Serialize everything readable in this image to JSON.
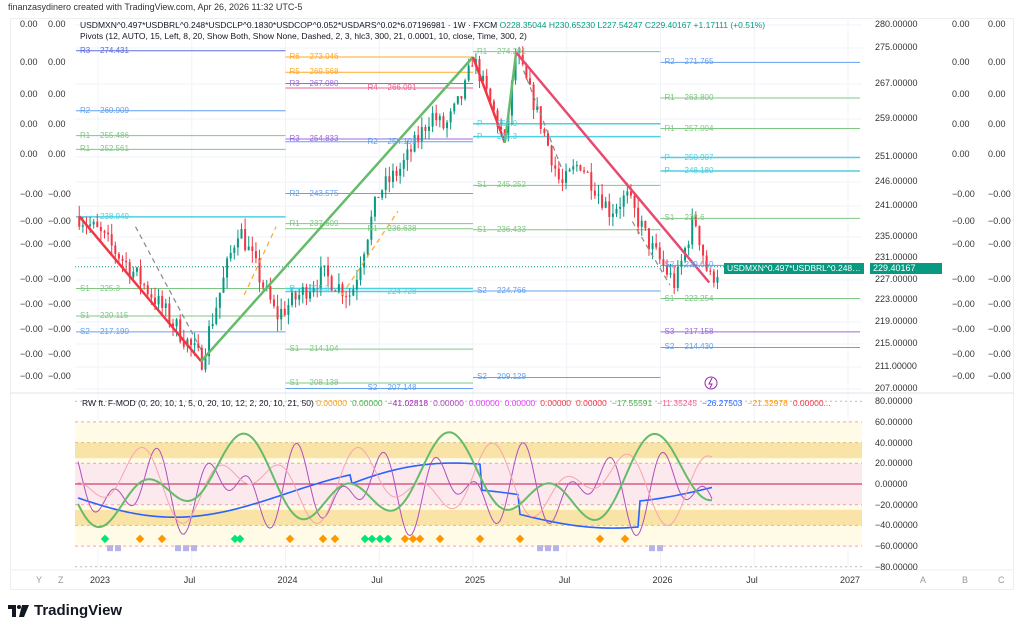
{
  "credit": "finanzasydinero created with TradingView.com, Apr 26, 2026 11:32 UTC-5",
  "symbol": {
    "name": "USDMXN^0.497*USDBRL^0.248*USDCLP^0.1830*USDCOP^0.052*USDARS^0.02*6.07196981 · 1W · FXCM",
    "open_label": "O",
    "open": "228.35044",
    "high_label": "H",
    "high": "230.65230",
    "low_label": "L",
    "low": "227.54247",
    "close_label": "C",
    "close": "229.40167",
    "change": "+1.17111 (+0.51%)",
    "short_name": "USDMXN^0.497*USDBRL^0.248*USDCLP^0.18...",
    "last_price": "229.40167"
  },
  "pivots_legend": "Pivots (12, AUTO, 15, Left, 8, 20, Show Both, Show None, Dashed, 2, 3, hlc3, 300, 21, 0.0001, 10, close, Time, 300, 2)",
  "oscillator_legend": {
    "title": "RW ft. F-MOD (0, 20, 10, 1, 5, 0, 20, 10, 12, 2, 20, 10, 21, 50)",
    "values": [
      {
        "v": "0.00000",
        "c": "#f7a21b"
      },
      {
        "v": "0.00000",
        "c": "#4caf50"
      },
      {
        "v": "−41.02818",
        "c": "#9c27b0"
      },
      {
        "v": "0.00000",
        "c": "#ab47bc"
      },
      {
        "v": "0.00000",
        "c": "#e040fb"
      },
      {
        "v": "0.00000",
        "c": "#e040fb"
      },
      {
        "v": "0.00000",
        "c": "#f23645"
      },
      {
        "v": "0.00000",
        "c": "#f23645"
      },
      {
        "v": "−17.55591",
        "c": "#4caf50"
      },
      {
        "v": "−11.35245",
        "c": "#f06292"
      },
      {
        "v": "−26.27503",
        "c": "#2962ff"
      },
      {
        "v": "−21.32978",
        "c": "#ff9800"
      },
      {
        "v": "0.00000...",
        "c": "#f23645"
      }
    ]
  },
  "price_axis": [
    "280.00000",
    "275.00000",
    "267.00000",
    "259.00000",
    "251.00000",
    "246.00000",
    "241.00000",
    "235.00000",
    "231.00000",
    "227.00000",
    "223.00000",
    "219.00000",
    "215.00000",
    "211.00000",
    "207.00000"
  ],
  "price_axis_values": [
    280,
    275,
    267,
    259,
    251,
    246,
    241,
    235,
    231,
    227,
    223,
    219,
    215,
    211,
    207
  ],
  "osc_axis": [
    "80.00000",
    "60.00000",
    "40.00000",
    "20.00000",
    "0.00000",
    "−20.00000",
    "−40.00000",
    "−60.00000",
    "−80.00000"
  ],
  "osc_axis_values": [
    80,
    60,
    40,
    20,
    0,
    -20,
    -40,
    -60,
    -80
  ],
  "side_scale_values": [
    "0.00",
    "0.00",
    "0.00",
    "0.00",
    "0.00",
    "−0.00",
    "−0.00",
    "−0.00",
    "−0.00",
    "−0.00",
    "−0.00",
    "−0.00",
    "−0.00"
  ],
  "time_axis": [
    {
      "label": "2023",
      "t": 2023
    },
    {
      "label": "Jul",
      "t": 2023.5
    },
    {
      "label": "2024",
      "t": 2024
    },
    {
      "label": "Jul",
      "t": 2024.5
    },
    {
      "label": "2025",
      "t": 2025
    },
    {
      "label": "Jul",
      "t": 2025.5
    },
    {
      "label": "2026",
      "t": 2026
    },
    {
      "label": "Jul",
      "t": 2026.5
    },
    {
      "label": "2027",
      "t": 2027
    }
  ],
  "bottom_left_buttons": [
    "Y",
    "Z"
  ],
  "bottom_right_buttons": [
    "A",
    "B",
    "C"
  ],
  "brand": "TradingView",
  "price_path": [
    [
      2022.9,
      239
    ],
    [
      2023.0,
      236
    ],
    [
      2023.2,
      228
    ],
    [
      2023.55,
      212
    ],
    [
      2023.75,
      237
    ],
    [
      2023.95,
      220
    ],
    [
      2024.2,
      228
    ],
    [
      2024.35,
      224
    ],
    [
      2024.5,
      244
    ],
    [
      2024.62,
      249
    ],
    [
      2024.78,
      260
    ],
    [
      2024.85,
      257
    ],
    [
      2024.95,
      265
    ],
    [
      2025.0,
      273
    ],
    [
      2025.17,
      254
    ],
    [
      2025.23,
      274
    ],
    [
      2025.47,
      245
    ],
    [
      2025.57,
      250
    ],
    [
      2025.73,
      240
    ],
    [
      2025.82,
      243
    ],
    [
      2025.95,
      233
    ],
    [
      2026.08,
      226
    ],
    [
      2026.18,
      239
    ],
    [
      2026.26,
      227
    ],
    [
      2026.32,
      229.4
    ]
  ],
  "zigzag": [
    [
      2022.9,
      239,
      "#f23645"
    ],
    [
      2023.55,
      212,
      "#66bb6a"
    ],
    [
      2025.0,
      273,
      "#f23645"
    ],
    [
      2025.17,
      254,
      "#66bb6a"
    ],
    [
      2025.23,
      274,
      "#e84a6f"
    ],
    [
      2026.26,
      226.5,
      ""
    ]
  ],
  "pivot_segments": [
    {
      "from": 2022.9,
      "to": 2024,
      "levels": [
        {
          "l": "R3",
          "v": "274.431",
          "p": 274.4,
          "c": "#5b6ee1"
        },
        {
          "l": "R2",
          "v": "260.909",
          "p": 260.9,
          "c": "#64a0f0"
        },
        {
          "l": "R1",
          "v": "255.486",
          "p": 255.5,
          "c": "#81c784"
        },
        {
          "l": "R1",
          "v": "252.561",
          "p": 252.6,
          "c": "#81c784"
        },
        {
          "l": "",
          "v": "238.949",
          "p": 238.9,
          "c": "#4dd0e1"
        },
        {
          "l": "S1",
          "v": "225.3",
          "p": 225.3,
          "c": "#81c784"
        },
        {
          "l": "S1",
          "v": "220.115",
          "p": 220.1,
          "c": "#81c784"
        },
        {
          "l": "S2",
          "v": "217.190",
          "p": 217.2,
          "c": "#64a0f0"
        }
      ]
    },
    {
      "from": 2024,
      "to": 2025,
      "levels": [
        {
          "l": "R6",
          "v": "273.046",
          "p": 273.0,
          "c": "#ffa726"
        },
        {
          "l": "R5",
          "v": "269.568",
          "p": 269.6,
          "c": "#ffa726"
        },
        {
          "l": "R3",
          "v": "267.080",
          "p": 267.1,
          "c": "#9c6ade"
        },
        {
          "l": "R4",
          "v": "266.091",
          "p": 266.1,
          "c": "#f06292"
        },
        {
          "l": "R3",
          "v": "254.833",
          "p": 254.8,
          "c": "#9c6ade"
        },
        {
          "l": "R2",
          "v": "254.191",
          "p": 254.2,
          "c": "#64a0f0"
        },
        {
          "l": "R2",
          "v": "243.575",
          "p": 243.6,
          "c": "#64a0f0"
        },
        {
          "l": "R1",
          "v": "237.609",
          "p": 237.6,
          "c": "#81c784"
        },
        {
          "l": "R1",
          "v": "236.638",
          "p": 236.6,
          "c": "#81c784"
        },
        {
          "l": "P",
          "v": "225.3",
          "p": 225.3,
          "c": "#4dd0e1"
        },
        {
          "l": "",
          "v": "224.728",
          "p": 224.7,
          "c": "#4dd0e1"
        },
        {
          "l": "S1",
          "v": "214.104",
          "p": 214.1,
          "c": "#81c784"
        },
        {
          "l": "S1",
          "v": "208.138",
          "p": 208.1,
          "c": "#81c784"
        },
        {
          "l": "S2",
          "v": "207.148",
          "p": 207.1,
          "c": "#64a0f0"
        }
      ]
    },
    {
      "from": 2025,
      "to": 2026,
      "levels": [
        {
          "l": "R1",
          "v": "274.201",
          "p": 274.2,
          "c": "#81c784"
        },
        {
          "l": "P",
          "v": "258.0",
          "p": 258.0,
          "c": "#4dd0e1"
        },
        {
          "l": "P",
          "v": "255.3",
          "p": 255.3,
          "c": "#4dd0e1"
        },
        {
          "l": "S1",
          "v": "245.252",
          "p": 245.3,
          "c": "#81c784"
        },
        {
          "l": "S1",
          "v": "236.433",
          "p": 236.4,
          "c": "#81c784"
        },
        {
          "l": "S2",
          "v": "224.766",
          "p": 224.8,
          "c": "#64a0f0"
        },
        {
          "l": "S2",
          "v": "209.129",
          "p": 209.1,
          "c": "#64a0f0"
        }
      ]
    },
    {
      "from": 2026,
      "to": 2027.1,
      "levels": [
        {
          "l": "R2",
          "v": "271.765",
          "p": 271.8,
          "c": "#64a0f0"
        },
        {
          "l": "R1",
          "v": "263.800",
          "p": 263.8,
          "c": "#81c784"
        },
        {
          "l": "R1",
          "v": "257.004",
          "p": 257.0,
          "c": "#81c784"
        },
        {
          "l": "P",
          "v": "250.907",
          "p": 250.9,
          "c": "#4dd0e1"
        },
        {
          "l": "P",
          "v": "248.180",
          "p": 248.2,
          "c": "#4dd0e1"
        },
        {
          "l": "S1",
          "v": "238.6",
          "p": 238.6,
          "c": "#81c784"
        },
        {
          "l": "S2",
          "v": "229.650",
          "p": 229.65,
          "c": "#64a0f0"
        },
        {
          "l": "S1",
          "v": "223.254",
          "p": 223.3,
          "c": "#81c784"
        },
        {
          "l": "S3",
          "v": "217.158",
          "p": 217.2,
          "c": "#9c6ade"
        },
        {
          "l": "S2",
          "v": "214.430",
          "p": 214.4,
          "c": "#64a0f0"
        }
      ]
    }
  ],
  "colors": {
    "up": "#089981",
    "down": "#f23645",
    "accent": "#089981"
  }
}
